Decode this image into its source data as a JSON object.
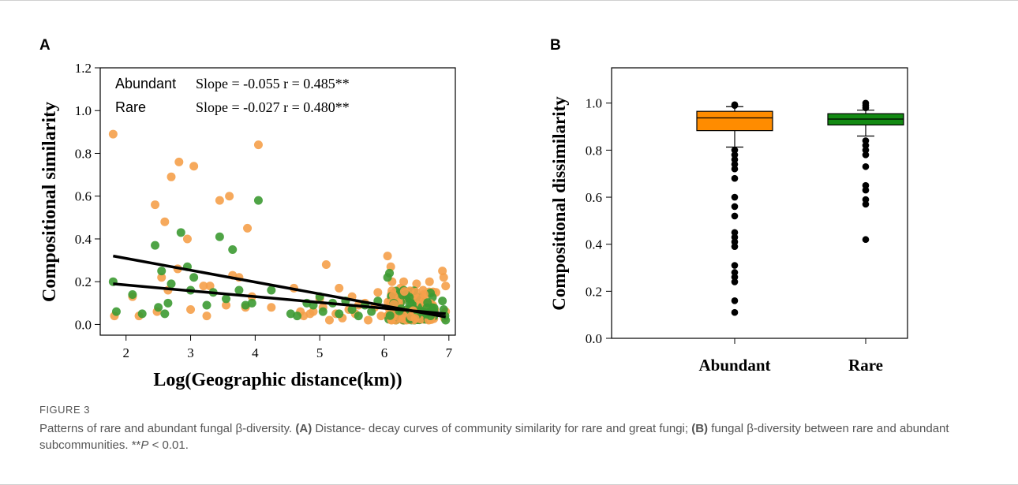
{
  "panels": {
    "a_letter": "A",
    "b_letter": "B"
  },
  "caption": {
    "label": "FIGURE 3",
    "text_1": "Patterns of rare and abundant fungal β-diversity. ",
    "a_ref": "(A)",
    "text_2": " Distance- decay curves of community similarity for rare and great fungi; ",
    "b_ref": "(B)",
    "text_3": " fungal β-diversity between rare and abundant subcommunities. **",
    "p_italic": "P",
    "text_4": " < 0.01."
  },
  "colors": {
    "abundant": "#f5a04a",
    "rare": "#3c9a32",
    "box_abundant": "#ff8c00",
    "box_rare": "#138a13"
  },
  "chart_data": [
    {
      "type": "scatter",
      "title": "",
      "xlabel": "Log(Geographic distance(km))",
      "ylabel": "Compositional similarity",
      "xlim": [
        1.6,
        7.1
      ],
      "ylim": [
        -0.05,
        1.2
      ],
      "xticks": [
        "2",
        "3",
        "4",
        "5",
        "6",
        "7"
      ],
      "yticks": [
        "0.0",
        "0.2",
        "0.4",
        "0.6",
        "0.8",
        "1.0",
        "1.2"
      ],
      "legend": [
        {
          "name": "Abundant",
          "stat": "Slope = -0.055 r = 0.485**"
        },
        {
          "name": "Rare",
          "stat": "Slope = -0.027 r = 0.480**"
        }
      ],
      "fit_lines": [
        {
          "series": "Abundant",
          "x": [
            1.8,
            6.95
          ],
          "y": [
            0.32,
            0.035
          ]
        },
        {
          "series": "Rare",
          "x": [
            1.8,
            6.95
          ],
          "y": [
            0.19,
            0.05
          ]
        }
      ],
      "series": [
        {
          "name": "Abundant",
          "points": [
            [
              1.8,
              0.89
            ],
            [
              1.82,
              0.04
            ],
            [
              2.1,
              0.13
            ],
            [
              2.2,
              0.04
            ],
            [
              2.45,
              0.56
            ],
            [
              2.48,
              0.06
            ],
            [
              2.55,
              0.22
            ],
            [
              2.6,
              0.48
            ],
            [
              2.65,
              0.16
            ],
            [
              2.7,
              0.69
            ],
            [
              2.8,
              0.26
            ],
            [
              2.82,
              0.76
            ],
            [
              2.95,
              0.4
            ],
            [
              3.0,
              0.07
            ],
            [
              3.05,
              0.74
            ],
            [
              3.2,
              0.18
            ],
            [
              3.25,
              0.04
            ],
            [
              3.3,
              0.18
            ],
            [
              3.45,
              0.58
            ],
            [
              3.55,
              0.09
            ],
            [
              3.6,
              0.6
            ],
            [
              3.65,
              0.23
            ],
            [
              3.75,
              0.22
            ],
            [
              3.85,
              0.08
            ],
            [
              3.88,
              0.45
            ],
            [
              3.95,
              0.13
            ],
            [
              4.05,
              0.84
            ],
            [
              4.25,
              0.08
            ],
            [
              4.6,
              0.17
            ],
            [
              4.7,
              0.06
            ],
            [
              4.75,
              0.04
            ],
            [
              4.85,
              0.05
            ],
            [
              4.9,
              0.06
            ],
            [
              5.0,
              0.12
            ],
            [
              5.05,
              0.08
            ],
            [
              5.1,
              0.28
            ],
            [
              5.15,
              0.02
            ],
            [
              5.25,
              0.05
            ],
            [
              5.3,
              0.17
            ],
            [
              5.35,
              0.03
            ],
            [
              5.45,
              0.07
            ],
            [
              5.5,
              0.13
            ],
            [
              5.55,
              0.05
            ],
            [
              5.6,
              0.09
            ],
            [
              5.7,
              0.1
            ],
            [
              5.75,
              0.02
            ],
            [
              5.85,
              0.08
            ],
            [
              5.9,
              0.15
            ],
            [
              5.95,
              0.04
            ],
            [
              6.05,
              0.32
            ],
            [
              6.1,
              0.27
            ],
            [
              6.12,
              0.2
            ],
            [
              6.15,
              0.05
            ],
            [
              6.2,
              0.11
            ],
            [
              6.25,
              0.17
            ],
            [
              6.3,
              0.2
            ],
            [
              6.3,
              0.02
            ],
            [
              6.35,
              0.14
            ],
            [
              6.4,
              0.12
            ],
            [
              6.45,
              0.05
            ],
            [
              6.5,
              0.19
            ],
            [
              6.55,
              0.07
            ],
            [
              6.6,
              0.16
            ],
            [
              6.65,
              0.03
            ],
            [
              6.7,
              0.2
            ],
            [
              6.75,
              0.09
            ],
            [
              6.8,
              0.15
            ],
            [
              6.9,
              0.25
            ],
            [
              6.92,
              0.22
            ],
            [
              6.95,
              0.18
            ],
            [
              6.95,
              0.06
            ],
            [
              6.93,
              0.03
            ]
          ]
        },
        {
          "name": "Rare",
          "points": [
            [
              1.8,
              0.2
            ],
            [
              1.85,
              0.06
            ],
            [
              2.1,
              0.14
            ],
            [
              2.25,
              0.05
            ],
            [
              2.45,
              0.37
            ],
            [
              2.5,
              0.08
            ],
            [
              2.55,
              0.25
            ],
            [
              2.6,
              0.05
            ],
            [
              2.65,
              0.1
            ],
            [
              2.7,
              0.19
            ],
            [
              2.85,
              0.43
            ],
            [
              2.95,
              0.27
            ],
            [
              3.0,
              0.16
            ],
            [
              3.05,
              0.22
            ],
            [
              3.25,
              0.09
            ],
            [
              3.35,
              0.15
            ],
            [
              3.45,
              0.41
            ],
            [
              3.55,
              0.12
            ],
            [
              3.65,
              0.35
            ],
            [
              3.75,
              0.16
            ],
            [
              3.85,
              0.09
            ],
            [
              3.95,
              0.1
            ],
            [
              4.05,
              0.58
            ],
            [
              4.25,
              0.16
            ],
            [
              4.55,
              0.05
            ],
            [
              4.65,
              0.04
            ],
            [
              4.8,
              0.1
            ],
            [
              4.9,
              0.09
            ],
            [
              5.0,
              0.13
            ],
            [
              5.05,
              0.06
            ],
            [
              5.2,
              0.1
            ],
            [
              5.3,
              0.05
            ],
            [
              5.4,
              0.11
            ],
            [
              5.5,
              0.07
            ],
            [
              5.6,
              0.04
            ],
            [
              5.7,
              0.09
            ],
            [
              5.8,
              0.06
            ],
            [
              5.9,
              0.11
            ],
            [
              6.05,
              0.22
            ],
            [
              6.08,
              0.24
            ],
            [
              6.1,
              0.08
            ],
            [
              6.15,
              0.13
            ],
            [
              6.2,
              0.05
            ],
            [
              6.25,
              0.1
            ],
            [
              6.3,
              0.16
            ],
            [
              6.35,
              0.07
            ],
            [
              6.4,
              0.12
            ],
            [
              6.45,
              0.04
            ],
            [
              6.5,
              0.09
            ],
            [
              6.55,
              0.06
            ],
            [
              6.6,
              0.11
            ],
            [
              6.65,
              0.05
            ],
            [
              6.7,
              0.08
            ],
            [
              6.75,
              0.06
            ],
            [
              6.9,
              0.11
            ],
            [
              6.92,
              0.07
            ],
            [
              6.94,
              0.04
            ],
            [
              6.95,
              0.02
            ]
          ]
        }
      ]
    },
    {
      "type": "box",
      "title": "",
      "xlabel": "",
      "ylabel": "Compositional dissimilarity",
      "ylim": [
        0.0,
        1.15
      ],
      "yticks": [
        "0.0",
        "0.2",
        "0.4",
        "0.6",
        "0.8",
        "1.0"
      ],
      "categories": [
        "Abundant",
        "Rare"
      ],
      "boxes": [
        {
          "name": "Abundant",
          "q1": 0.883,
          "median": 0.937,
          "q3": 0.965,
          "whisker_low": 0.813,
          "whisker_high": 0.985,
          "outliers": [
            0.11,
            0.16,
            0.24,
            0.26,
            0.28,
            0.31,
            0.39,
            0.41,
            0.43,
            0.45,
            0.52,
            0.56,
            0.6,
            0.68,
            0.72,
            0.74,
            0.76,
            0.78,
            0.8,
            0.99,
            0.993
          ]
        },
        {
          "name": "Rare",
          "q1": 0.907,
          "median": 0.932,
          "q3": 0.955,
          "whisker_low": 0.86,
          "whisker_high": 0.97,
          "outliers": [
            0.42,
            0.57,
            0.59,
            0.63,
            0.65,
            0.73,
            0.78,
            0.8,
            0.82,
            0.84,
            0.98,
            0.99,
            1.0
          ]
        }
      ]
    }
  ]
}
